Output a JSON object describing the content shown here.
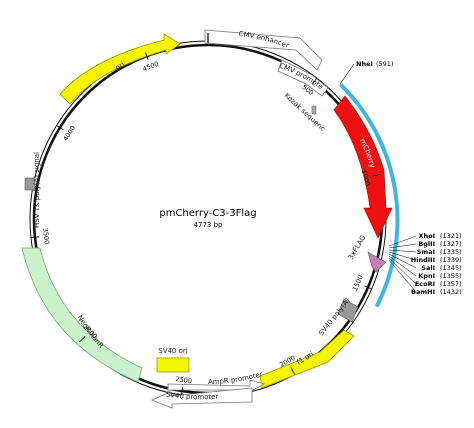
{
  "plasmid": {
    "name": "pmCherry-C3-3Flag",
    "size_label": "4773 bp",
    "total_bp": 4773
  },
  "ticks": [
    {
      "label": "500",
      "bp": 500
    },
    {
      "label": "1000",
      "bp": 1000
    },
    {
      "label": "1500",
      "bp": 1500
    },
    {
      "label": "2000",
      "bp": 2000
    },
    {
      "label": "2500",
      "bp": 2500
    },
    {
      "label": "3000",
      "bp": 3000
    },
    {
      "label": "3500",
      "bp": 3500
    },
    {
      "label": "4000",
      "bp": 4000
    },
    {
      "label": "4500",
      "bp": 4500
    }
  ],
  "features": [
    {
      "name": "CMV enhancer",
      "color": "#ffffff",
      "kind": "arrow"
    },
    {
      "name": "CMV promoter",
      "color": "#ffffff",
      "kind": "arrow"
    },
    {
      "name": "Kozak sequence",
      "color": "#aaaaaa",
      "kind": "box"
    },
    {
      "name": "mCherry",
      "color": "#ee1111",
      "kind": "arrow"
    },
    {
      "name": "3xFLAG",
      "color": "#c77fb0",
      "kind": "arrow"
    },
    {
      "name": "SV40 poly(A) signal",
      "color": "#999999",
      "kind": "box"
    },
    {
      "name": "f1 ori",
      "color": "#f5f500",
      "kind": "arrow"
    },
    {
      "name": "AmpR promoter",
      "color": "#ffffff",
      "kind": "arrow"
    },
    {
      "name": "SV40 promoter",
      "color": "#ffffff",
      "kind": "arrow"
    },
    {
      "name": "SV40 ori",
      "color": "#f5f500",
      "kind": "box"
    },
    {
      "name": "NeoR/KanR",
      "color": "#ccf2cc",
      "kind": "arrow"
    },
    {
      "name": "HSV TK poly(A) signal",
      "color": "#999999",
      "kind": "box"
    },
    {
      "name": "ori",
      "color": "#f5f500",
      "kind": "arrow"
    }
  ],
  "highlight_color": "#3fb5e6",
  "sites": [
    {
      "enzyme": "NheI",
      "position": "(591)"
    },
    {
      "enzyme": "XhoI",
      "position": "(1321)"
    },
    {
      "enzyme": "BglII",
      "position": "(1327)"
    },
    {
      "enzyme": "SmaI",
      "position": "(1335)"
    },
    {
      "enzyme": "HindIII",
      "position": "(1339)"
    },
    {
      "enzyme": "SalI",
      "position": "(1345)"
    },
    {
      "enzyme": "KpnI",
      "position": "(1355)"
    },
    {
      "enzyme": "EcoRI",
      "position": "(1357)"
    },
    {
      "enzyme": "BamHI",
      "position": "(1432)"
    }
  ]
}
